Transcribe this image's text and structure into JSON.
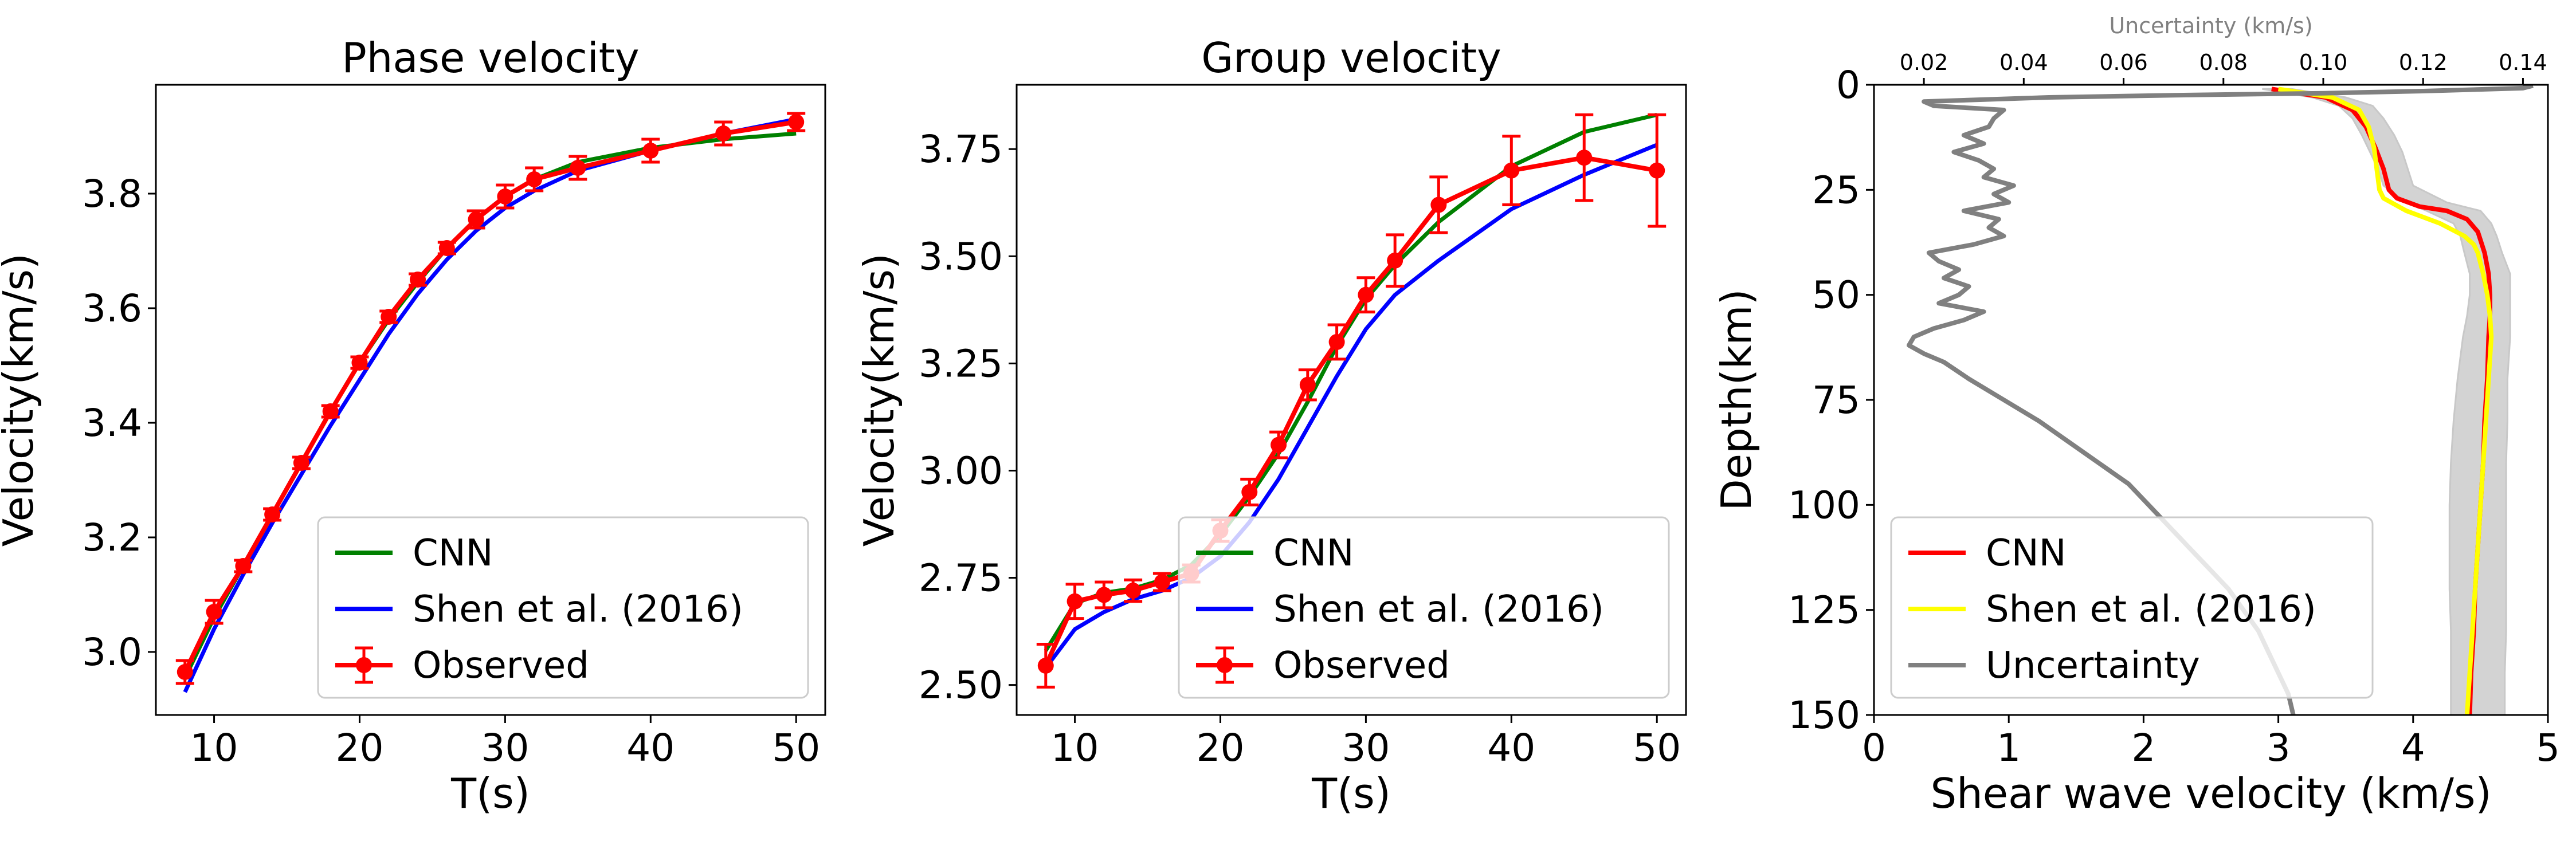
{
  "colors": {
    "cnn_green": "#008000",
    "shen_blue": "#0000ff",
    "observed_red": "#ff0000",
    "cnn_red": "#ff0000",
    "shen_yellow": "#ffff00",
    "uncertainty_gray": "#808080",
    "band_gray": "#d3d3d3"
  },
  "chart_data": [
    {
      "type": "line",
      "title": "Phase velocity",
      "xlabel": "T(s)",
      "ylabel": "Velocity(km/s)",
      "xlim": [
        6,
        52
      ],
      "ylim": [
        2.89,
        3.99
      ],
      "xticks": [
        10,
        20,
        30,
        40,
        50
      ],
      "yticks": [
        3.0,
        3.2,
        3.4,
        3.6,
        3.8
      ],
      "legend_position": "lower-right",
      "series": [
        {
          "name": "CNN",
          "kind": "line",
          "x": [
            8,
            10,
            12,
            14,
            16,
            18,
            20,
            22,
            24,
            26,
            28,
            30,
            32,
            35,
            40,
            45,
            50
          ],
          "y": [
            2.955,
            3.06,
            3.15,
            3.24,
            3.33,
            3.42,
            3.505,
            3.58,
            3.645,
            3.705,
            3.755,
            3.795,
            3.825,
            3.855,
            3.88,
            3.895,
            3.905
          ]
        },
        {
          "name": "Shen et al. (2016)",
          "kind": "line",
          "x": [
            8,
            10,
            12,
            14,
            16,
            18,
            20,
            22,
            24,
            26,
            28,
            30,
            32,
            35,
            40,
            45,
            50
          ],
          "y": [
            2.93,
            3.04,
            3.135,
            3.225,
            3.31,
            3.395,
            3.475,
            3.555,
            3.625,
            3.685,
            3.735,
            3.775,
            3.805,
            3.84,
            3.875,
            3.905,
            3.93
          ]
        },
        {
          "name": "Observed",
          "kind": "errorbar",
          "x": [
            8,
            10,
            12,
            14,
            16,
            18,
            20,
            22,
            24,
            26,
            28,
            30,
            32,
            35,
            40,
            45,
            50
          ],
          "y": [
            2.965,
            3.07,
            3.15,
            3.24,
            3.33,
            3.42,
            3.505,
            3.585,
            3.65,
            3.705,
            3.755,
            3.795,
            3.825,
            3.845,
            3.875,
            3.905,
            3.925
          ],
          "err": [
            0.02,
            0.02,
            0.01,
            0.01,
            0.01,
            0.01,
            0.01,
            0.01,
            0.01,
            0.01,
            0.015,
            0.02,
            0.02,
            0.02,
            0.02,
            0.02,
            0.015
          ]
        }
      ]
    },
    {
      "type": "line",
      "title": "Group velocity",
      "xlabel": "T(s)",
      "ylabel": "Velocity(km/s)",
      "xlim": [
        6,
        52
      ],
      "ylim": [
        2.43,
        3.9
      ],
      "xticks": [
        10,
        20,
        30,
        40,
        50
      ],
      "yticks": [
        2.5,
        2.75,
        3.0,
        3.25,
        3.5,
        3.75
      ],
      "legend_position": "lower-right",
      "series": [
        {
          "name": "CNN",
          "kind": "line",
          "x": [
            8,
            10,
            12,
            14,
            16,
            18,
            20,
            22,
            24,
            26,
            28,
            30,
            32,
            35,
            40,
            45,
            50
          ],
          "y": [
            2.58,
            2.69,
            2.715,
            2.725,
            2.745,
            2.78,
            2.85,
            2.94,
            3.04,
            3.16,
            3.29,
            3.4,
            3.48,
            3.58,
            3.71,
            3.79,
            3.83
          ]
        },
        {
          "name": "Shen et al. (2016)",
          "kind": "line",
          "x": [
            8,
            10,
            12,
            14,
            16,
            18,
            20,
            22,
            24,
            26,
            28,
            30,
            32,
            35,
            40,
            45,
            50
          ],
          "y": [
            2.54,
            2.63,
            2.67,
            2.7,
            2.72,
            2.75,
            2.8,
            2.88,
            2.98,
            3.1,
            3.22,
            3.33,
            3.41,
            3.49,
            3.61,
            3.69,
            3.76
          ]
        },
        {
          "name": "Observed",
          "kind": "errorbar",
          "x": [
            8,
            10,
            12,
            14,
            16,
            18,
            20,
            22,
            24,
            26,
            28,
            30,
            32,
            35,
            40,
            45,
            50
          ],
          "y": [
            2.545,
            2.695,
            2.71,
            2.72,
            2.74,
            2.76,
            2.86,
            2.95,
            3.06,
            3.2,
            3.3,
            3.41,
            3.49,
            3.62,
            3.7,
            3.73,
            3.7
          ],
          "err": [
            0.05,
            0.04,
            0.03,
            0.025,
            0.02,
            0.02,
            0.025,
            0.03,
            0.03,
            0.035,
            0.04,
            0.04,
            0.06,
            0.065,
            0.08,
            0.1,
            0.13
          ]
        }
      ]
    },
    {
      "type": "line",
      "xlabel": "Shear wave velocity (km/s)",
      "ylabel": "Depth(km)",
      "top_xlabel": "Uncertainty (km/s)",
      "xlim": [
        0,
        5
      ],
      "ylim": [
        150,
        0
      ],
      "xticks": [
        0,
        1,
        2,
        3,
        4,
        5
      ],
      "yticks": [
        0,
        25,
        50,
        75,
        100,
        125,
        150
      ],
      "top_xlim": [
        0.01,
        0.145
      ],
      "top_xticks": [
        0.02,
        0.04,
        0.06,
        0.08,
        0.1,
        0.12,
        0.14
      ],
      "legend_position": "lower-left",
      "band": {
        "depth": [
          1,
          3,
          5,
          8,
          12,
          16,
          20,
          24,
          28,
          30,
          33,
          36,
          40,
          45,
          50,
          55,
          60,
          70,
          80,
          90,
          100,
          110,
          120,
          130,
          140,
          150
        ],
        "lower": [
          2.88,
          3.25,
          3.45,
          3.55,
          3.62,
          3.68,
          3.74,
          3.78,
          3.95,
          4.1,
          4.3,
          4.35,
          4.38,
          4.42,
          4.42,
          4.4,
          4.37,
          4.33,
          4.3,
          4.28,
          4.27,
          4.27,
          4.27,
          4.28,
          4.28,
          4.28
        ],
        "upper": [
          3.1,
          3.5,
          3.7,
          3.78,
          3.86,
          3.92,
          3.96,
          4.0,
          4.25,
          4.5,
          4.58,
          4.62,
          4.66,
          4.72,
          4.72,
          4.72,
          4.72,
          4.7,
          4.7,
          4.69,
          4.69,
          4.69,
          4.69,
          4.69,
          4.68,
          4.68
        ]
      },
      "series": [
        {
          "name": "CNN",
          "axis": "bottom",
          "depth": [
            1,
            3,
            6,
            10,
            15,
            20,
            25,
            27,
            29,
            30,
            32,
            35,
            38,
            40,
            45,
            50,
            55,
            60,
            70,
            80,
            90,
            100,
            110,
            120,
            130,
            140,
            150
          ],
          "x": [
            2.95,
            3.35,
            3.55,
            3.65,
            3.72,
            3.78,
            3.82,
            3.88,
            4.05,
            4.25,
            4.4,
            4.48,
            4.51,
            4.53,
            4.56,
            4.57,
            4.57,
            4.56,
            4.55,
            4.53,
            4.52,
            4.5,
            4.48,
            4.46,
            4.45,
            4.43,
            4.42
          ]
        },
        {
          "name": "Shen et al. (2016)",
          "axis": "bottom",
          "depth": [
            1,
            3,
            6,
            10,
            15,
            20,
            25,
            27,
            30,
            33,
            36,
            38,
            40,
            45,
            50,
            55,
            60,
            70,
            80,
            90,
            100,
            110,
            120,
            130,
            140,
            150
          ],
          "x": [
            3.0,
            3.4,
            3.6,
            3.67,
            3.71,
            3.73,
            3.75,
            3.78,
            3.95,
            4.2,
            4.38,
            4.45,
            4.48,
            4.52,
            4.55,
            4.57,
            4.58,
            4.56,
            4.54,
            4.52,
            4.5,
            4.48,
            4.46,
            4.44,
            4.42,
            4.4
          ]
        },
        {
          "name": "Uncertainty",
          "axis": "top",
          "depth": [
            0.2,
            0.8,
            1.5,
            2,
            2.5,
            3,
            4,
            5,
            6,
            8,
            10,
            12,
            14,
            16,
            18,
            20,
            22,
            24,
            26,
            28,
            30,
            32,
            34,
            36,
            38,
            40,
            42,
            44,
            46,
            48,
            50,
            52,
            54,
            56,
            58,
            60,
            62,
            64,
            66,
            70,
            75,
            80,
            85,
            90,
            95,
            100,
            105,
            110,
            115,
            120,
            125,
            130,
            135,
            140,
            145,
            150
          ],
          "x": [
            0.142,
            0.14,
            0.12,
            0.1,
            0.07,
            0.045,
            0.02,
            0.022,
            0.036,
            0.034,
            0.033,
            0.028,
            0.032,
            0.026,
            0.031,
            0.034,
            0.032,
            0.038,
            0.034,
            0.037,
            0.028,
            0.035,
            0.033,
            0.036,
            0.03,
            0.021,
            0.023,
            0.027,
            0.024,
            0.029,
            0.027,
            0.023,
            0.032,
            0.028,
            0.022,
            0.018,
            0.017,
            0.02,
            0.024,
            0.029,
            0.036,
            0.043,
            0.049,
            0.055,
            0.061,
            0.065,
            0.069,
            0.073,
            0.077,
            0.081,
            0.084,
            0.087,
            0.089,
            0.091,
            0.093,
            0.094
          ]
        }
      ]
    }
  ]
}
